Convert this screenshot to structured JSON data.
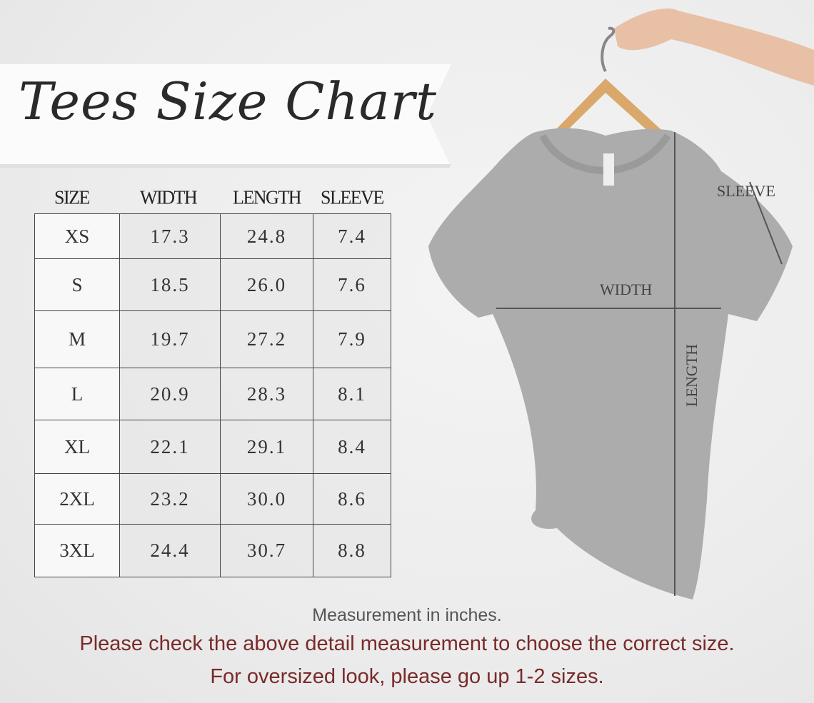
{
  "title": "Tees Size Chart",
  "headers": [
    "SIZE",
    "WIDTH",
    "LENGTH",
    "SLEEVE"
  ],
  "rows": [
    [
      "XS",
      "17.3",
      "24.8",
      "7.4"
    ],
    [
      "S",
      "18.5",
      "26.0",
      "7.6"
    ],
    [
      "M",
      "19.7",
      "27.2",
      "7.9"
    ],
    [
      "L",
      "20.9",
      "28.3",
      "8.1"
    ],
    [
      "XL",
      "22.1",
      "29.1",
      "8.4"
    ],
    [
      "2XL",
      "23.2",
      "30.0",
      "8.6"
    ],
    [
      "3XL",
      "24.4",
      "30.7",
      "8.8"
    ]
  ],
  "diagram": {
    "sleeve": "SLEEVE",
    "width": "WIDTH",
    "length": "LENGTH"
  },
  "notes": {
    "unit": "Measurement in inches.",
    "check": "Please check the above detail measurement to choose the correct size.",
    "oversized": "For oversized look,  please go up 1-2 sizes."
  },
  "colors": {
    "note_gray": "#555555",
    "note_red": "#7a2a2a",
    "shirt": "#a9a9a9"
  }
}
